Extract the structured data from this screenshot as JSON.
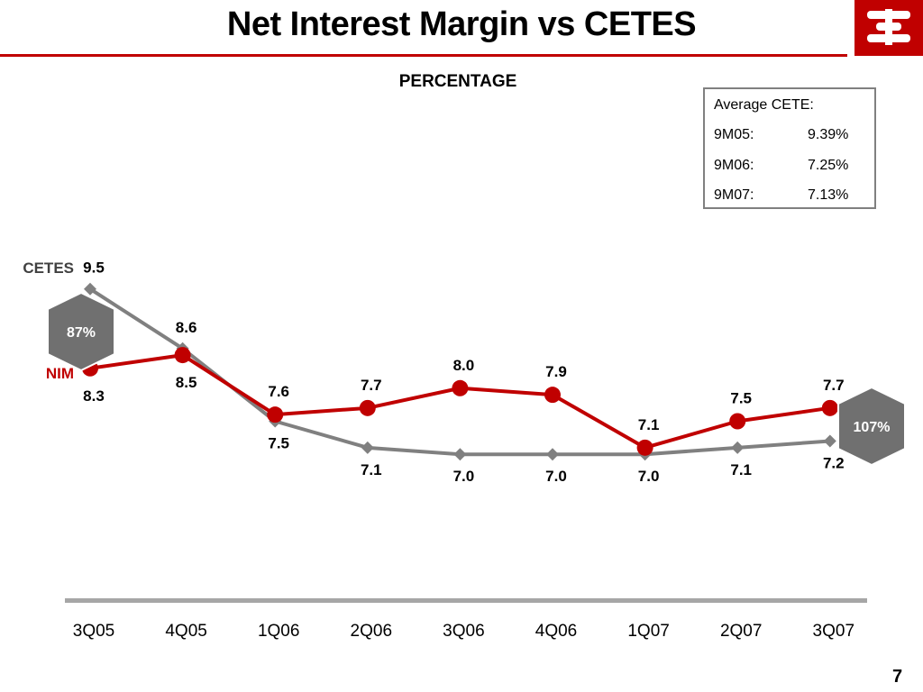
{
  "slide": {
    "title": "Net Interest Margin vs CETES",
    "page_number": "7"
  },
  "info_box": {
    "title": "Average CETE:",
    "rows": [
      {
        "period": "9M05:",
        "value": "9.39%"
      },
      {
        "period": "9M06:",
        "value": "7.25%"
      },
      {
        "period": "9M07:",
        "value": "7.13%"
      }
    ]
  },
  "colors": {
    "nim": "#c00000",
    "cetes": "#808080",
    "badge": "#707070",
    "brand": "#c00000"
  },
  "icons": {
    "logo": "bank-logo-icon"
  },
  "chart_data": {
    "type": "line",
    "subtitle": "PERCENTAGE",
    "categories": [
      "3Q05",
      "4Q05",
      "1Q06",
      "2Q06",
      "3Q06",
      "4Q06",
      "1Q07",
      "2Q07",
      "3Q07"
    ],
    "series": [
      {
        "name": "CETES",
        "values": [
          9.5,
          8.6,
          7.5,
          7.1,
          7.0,
          7.0,
          7.0,
          7.1,
          7.2
        ],
        "value_labels": [
          "9.5",
          "8.6",
          "7.5",
          "7.1",
          "7.0",
          "7.0",
          "7.0",
          "7.1",
          "7.2"
        ]
      },
      {
        "name": "NIM",
        "values": [
          8.3,
          8.5,
          7.6,
          7.7,
          8.0,
          7.9,
          7.1,
          7.5,
          7.7
        ],
        "value_labels": [
          "8.3",
          "8.5",
          "7.6",
          "7.7",
          "8.0",
          "7.9",
          "7.1",
          "7.5",
          "7.7"
        ]
      }
    ],
    "annotations": [
      {
        "text": "87%",
        "at_category": "3Q05"
      },
      {
        "text": "107%",
        "at_category": "3Q07"
      }
    ],
    "ylim": [
      4.0,
      10.0
    ],
    "grid": false,
    "legend": "left"
  }
}
